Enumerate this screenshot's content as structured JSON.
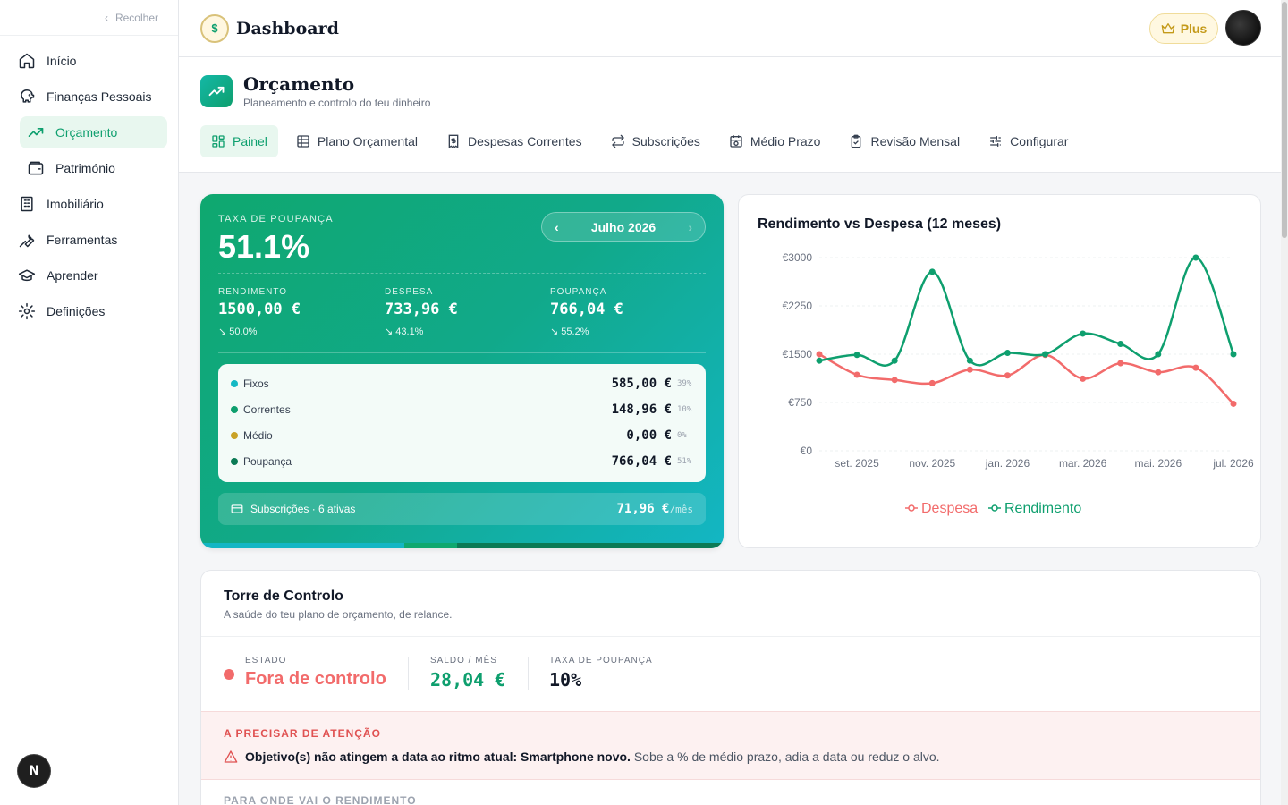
{
  "sidebar": {
    "collapse_label": "Recolher",
    "items": [
      {
        "label": "Início",
        "icon": "home-icon"
      },
      {
        "label": "Finanças Pessoais",
        "icon": "piggy-bank-icon"
      },
      {
        "label": "Orçamento",
        "icon": "trending-up-icon",
        "active": true
      },
      {
        "label": "Património",
        "icon": "wallet-icon"
      },
      {
        "label": "Imobiliário",
        "icon": "building-icon"
      },
      {
        "label": "Ferramentas",
        "icon": "wrench-icon"
      },
      {
        "label": "Aprender",
        "icon": "graduation-cap-icon"
      },
      {
        "label": "Definições",
        "icon": "gear-icon"
      }
    ]
  },
  "header": {
    "title": "Dashboard",
    "plus_label": "Plus"
  },
  "page": {
    "title": "Orçamento",
    "subtitle": "Planeamento e controlo do teu dinheiro",
    "tabs": [
      {
        "label": "Painel",
        "active": true
      },
      {
        "label": "Plano Orçamental"
      },
      {
        "label": "Despesas Correntes"
      },
      {
        "label": "Subscrições"
      },
      {
        "label": "Médio Prazo"
      },
      {
        "label": "Revisão Mensal"
      },
      {
        "label": "Configurar"
      }
    ]
  },
  "savings": {
    "label": "TAXA DE POUPANÇA",
    "rate": "51.1%",
    "month": "Julho 2026",
    "stats": [
      {
        "label": "RENDIMENTO",
        "value": "1500,00 €",
        "pct": "↘ 50.0%"
      },
      {
        "label": "DESPESA",
        "value": "733,96 €",
        "pct": "↘ 43.1%"
      },
      {
        "label": "POUPANÇA",
        "value": "766,04 €",
        "pct": "↘ 55.2%"
      }
    ],
    "breakdown": [
      {
        "name": "Fixos",
        "value": "585,00 €",
        "pct": "39%",
        "color": "#14b8c4"
      },
      {
        "name": "Correntes",
        "value": "148,96 €",
        "pct": "10%",
        "color": "#0e9f6e"
      },
      {
        "name": "Médio",
        "value": "0,00 €",
        "pct": "0%",
        "color": "#c9a227"
      },
      {
        "name": "Poupança",
        "value": "766,04 €",
        "pct": "51%",
        "color": "#0b7a55"
      }
    ],
    "subscriptions": {
      "label": "Subscrições · 6 ativas",
      "value": "71,96 €",
      "unit": "/mês"
    },
    "bar_colors": [
      "#13b6c4",
      "#0fa86f",
      "#0b7a55"
    ],
    "bar_fractions": [
      0.39,
      0.1,
      0.51
    ]
  },
  "chart_data": {
    "type": "line",
    "title": "Rendimento vs Despesa (12 meses)",
    "x": [
      "ago. 2025",
      "set. 2025",
      "out. 2025",
      "nov. 2025",
      "dez. 2025",
      "jan. 2026",
      "fev. 2026",
      "mar. 2026",
      "abr. 2026",
      "mai. 2026",
      "jun. 2026",
      "jul. 2026"
    ],
    "xtick_labels": [
      "set. 2025",
      "nov. 2025",
      "jan. 2026",
      "mar. 2026",
      "mai. 2026",
      "jul. 2026"
    ],
    "ytick_labels": [
      "€3000",
      "€2250",
      "€1500",
      "€750",
      "€0"
    ],
    "ylim": [
      0,
      3000
    ],
    "series": [
      {
        "name": "Despesa",
        "color": "#f26b6b",
        "values": [
          1500,
          1180,
          1100,
          1050,
          1260,
          1170,
          1490,
          1120,
          1360,
          1220,
          1290,
          730
        ]
      },
      {
        "name": "Rendimento",
        "color": "#0e9f6e",
        "values": [
          1400,
          1490,
          1400,
          2780,
          1400,
          1520,
          1500,
          1820,
          1660,
          1500,
          3000,
          1500
        ]
      }
    ],
    "legend": "bottom",
    "grid": true
  },
  "tower": {
    "title": "Torre de Controlo",
    "subtitle": "A saúde do teu plano de orçamento, de relance.",
    "status_label": "ESTADO",
    "status_value": "Fora de controlo",
    "balance_label": "SALDO / MÊS",
    "balance_value": "28,04 €",
    "rate_label": "TAXA DE POUPANÇA",
    "rate_value": "10%",
    "alert_title": "A PRECISAR DE ATENÇÃO",
    "alert_bold": "Objetivo(s) não atingem a data ao ritmo atual: Smartphone novo.",
    "alert_rest": "Sobe a % de médio prazo, adia a data ou reduz o alvo.",
    "where_title": "PARA ONDE VAI O RENDIMENTO"
  }
}
